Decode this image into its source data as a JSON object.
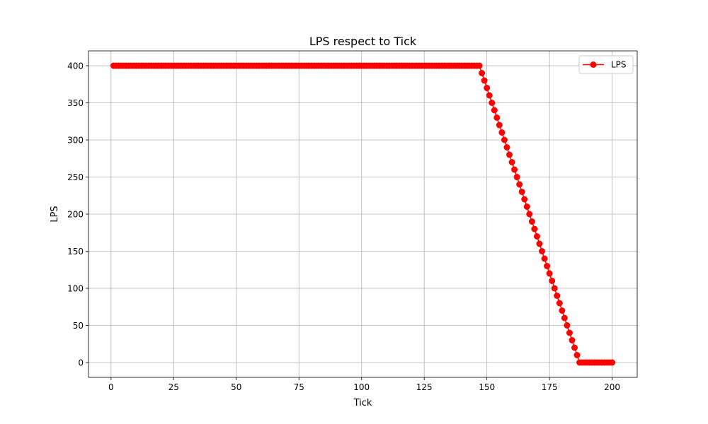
{
  "chart_data": {
    "type": "line",
    "title": "LPS respect to Tick",
    "xlabel": "Tick",
    "ylabel": "LPS",
    "xlim": [
      -9,
      210
    ],
    "ylim": [
      -20,
      420
    ],
    "xticks": [
      0,
      25,
      50,
      75,
      100,
      125,
      150,
      175,
      200
    ],
    "yticks": [
      0,
      50,
      100,
      150,
      200,
      250,
      300,
      350,
      400
    ],
    "grid": true,
    "legend_position": "top-right",
    "series": [
      {
        "name": "LPS",
        "color": "#ff0000",
        "marker": "circle",
        "x": [
          1,
          2,
          3,
          4,
          5,
          6,
          7,
          8,
          9,
          10,
          11,
          12,
          13,
          14,
          15,
          16,
          17,
          18,
          19,
          20,
          21,
          22,
          23,
          24,
          25,
          26,
          27,
          28,
          29,
          30,
          31,
          32,
          33,
          34,
          35,
          36,
          37,
          38,
          39,
          40,
          41,
          42,
          43,
          44,
          45,
          46,
          47,
          48,
          49,
          50,
          51,
          52,
          53,
          54,
          55,
          56,
          57,
          58,
          59,
          60,
          61,
          62,
          63,
          64,
          65,
          66,
          67,
          68,
          69,
          70,
          71,
          72,
          73,
          74,
          75,
          76,
          77,
          78,
          79,
          80,
          81,
          82,
          83,
          84,
          85,
          86,
          87,
          88,
          89,
          90,
          91,
          92,
          93,
          94,
          95,
          96,
          97,
          98,
          99,
          100,
          101,
          102,
          103,
          104,
          105,
          106,
          107,
          108,
          109,
          110,
          111,
          112,
          113,
          114,
          115,
          116,
          117,
          118,
          119,
          120,
          121,
          122,
          123,
          124,
          125,
          126,
          127,
          128,
          129,
          130,
          131,
          132,
          133,
          134,
          135,
          136,
          137,
          138,
          139,
          140,
          141,
          142,
          143,
          144,
          145,
          146,
          147,
          148,
          149,
          150,
          151,
          152,
          153,
          154,
          155,
          156,
          157,
          158,
          159,
          160,
          161,
          162,
          163,
          164,
          165,
          166,
          167,
          168,
          169,
          170,
          171,
          172,
          173,
          174,
          175,
          176,
          177,
          178,
          179,
          180,
          181,
          182,
          183,
          184,
          185,
          186,
          187,
          188,
          189,
          190,
          191,
          192,
          193,
          194,
          195,
          196,
          197,
          198,
          199,
          200
        ],
        "y": [
          400,
          400,
          400,
          400,
          400,
          400,
          400,
          400,
          400,
          400,
          400,
          400,
          400,
          400,
          400,
          400,
          400,
          400,
          400,
          400,
          400,
          400,
          400,
          400,
          400,
          400,
          400,
          400,
          400,
          400,
          400,
          400,
          400,
          400,
          400,
          400,
          400,
          400,
          400,
          400,
          400,
          400,
          400,
          400,
          400,
          400,
          400,
          400,
          400,
          400,
          400,
          400,
          400,
          400,
          400,
          400,
          400,
          400,
          400,
          400,
          400,
          400,
          400,
          400,
          400,
          400,
          400,
          400,
          400,
          400,
          400,
          400,
          400,
          400,
          400,
          400,
          400,
          400,
          400,
          400,
          400,
          400,
          400,
          400,
          400,
          400,
          400,
          400,
          400,
          400,
          400,
          400,
          400,
          400,
          400,
          400,
          400,
          400,
          400,
          400,
          400,
          400,
          400,
          400,
          400,
          400,
          400,
          400,
          400,
          400,
          400,
          400,
          400,
          400,
          400,
          400,
          400,
          400,
          400,
          400,
          400,
          400,
          400,
          400,
          400,
          400,
          400,
          400,
          400,
          400,
          400,
          400,
          400,
          400,
          400,
          400,
          400,
          400,
          400,
          400,
          400,
          400,
          400,
          400,
          400,
          400,
          400,
          390,
          380,
          370,
          360,
          350,
          340,
          330,
          320,
          310,
          300,
          290,
          280,
          270,
          260,
          250,
          240,
          230,
          220,
          210,
          200,
          190,
          180,
          170,
          160,
          150,
          140,
          130,
          120,
          110,
          100,
          90,
          80,
          70,
          60,
          50,
          40,
          30,
          20,
          10,
          0,
          0,
          0,
          0,
          0,
          0,
          0,
          0,
          0,
          0,
          0,
          0,
          0,
          0
        ]
      }
    ]
  }
}
